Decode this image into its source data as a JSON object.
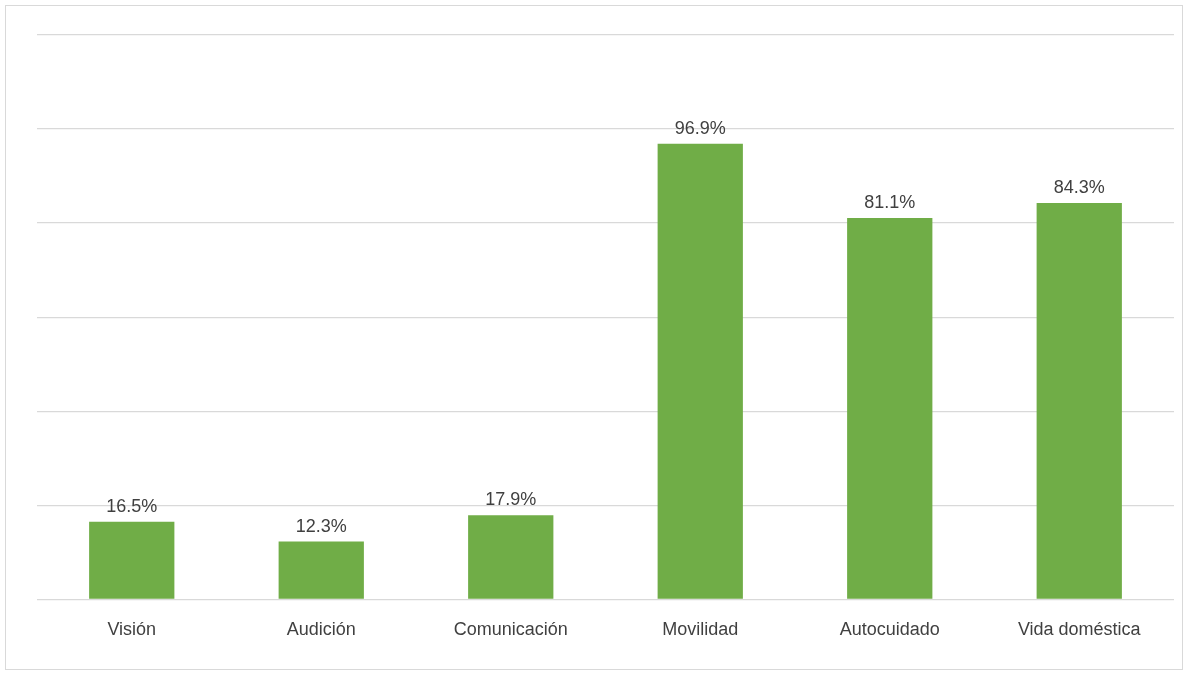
{
  "chart_data": {
    "type": "bar",
    "categories": [
      "Visión",
      "Audición",
      "Comunicación",
      "Movilidad",
      "Autocuidado",
      "Vida doméstica"
    ],
    "values": [
      16.5,
      12.3,
      17.9,
      96.9,
      81.1,
      84.3
    ],
    "value_labels": [
      "16.5%",
      "12.3%",
      "17.9%",
      "96.9%",
      "81.1%",
      "84.3%"
    ],
    "color": "#70ad47",
    "ylim": [
      0,
      120
    ],
    "yticks": [
      {
        "value": 0,
        "label": null
      },
      {
        "value": 20,
        "label": null
      },
      {
        "value": 40,
        "label": null
      },
      {
        "value": 60,
        "label": null
      },
      {
        "value": 80,
        "label": null
      },
      {
        "value": 100,
        "label": null
      },
      {
        "value": 120,
        "label": null
      }
    ],
    "grid": "y",
    "tick_labels": "x"
  }
}
